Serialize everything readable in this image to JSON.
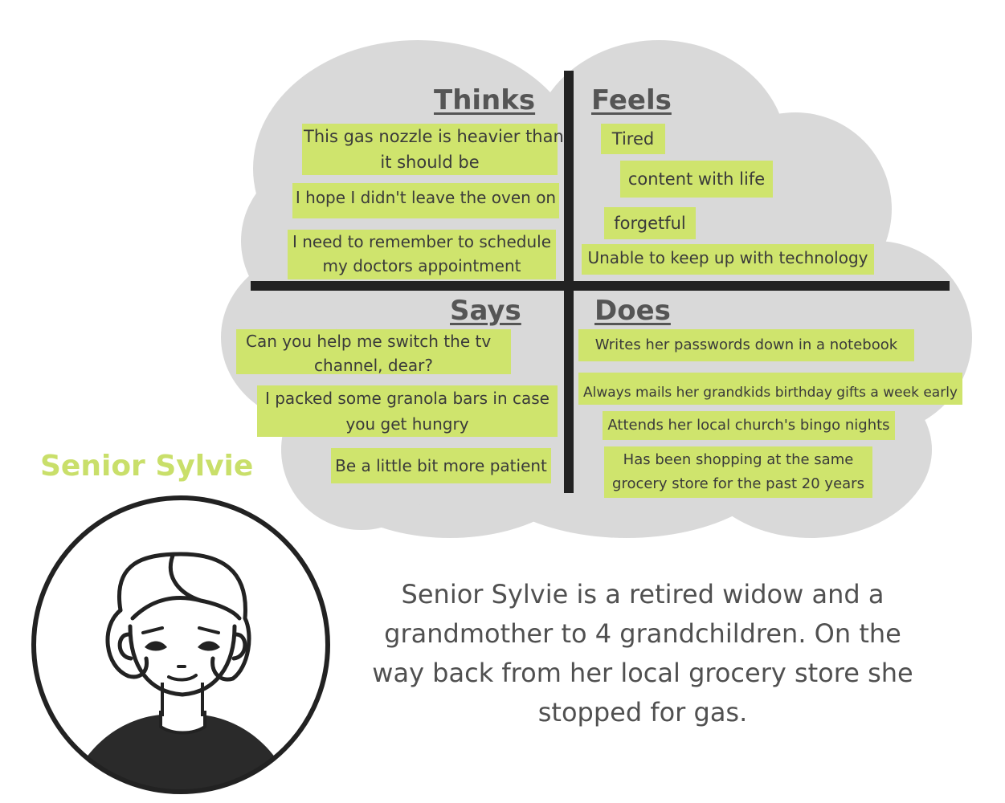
{
  "persona": {
    "name": "Senior Sylvie"
  },
  "quadrants": {
    "thinks": {
      "title": "Thinks",
      "notes": [
        [
          "This gas nozzle is heavier than",
          "it should be"
        ],
        [
          "I hope I didn't leave the oven on"
        ],
        [
          "I need to remember to schedule",
          "my doctors appointment"
        ]
      ]
    },
    "feels": {
      "title": "Feels",
      "notes": [
        [
          "Tired"
        ],
        [
          "content with life"
        ],
        [
          "forgetful"
        ],
        [
          "Unable to keep up with technology"
        ]
      ]
    },
    "says": {
      "title": "Says",
      "notes": [
        [
          "Can you help me switch the tv",
          "channel, dear?"
        ],
        [
          "I packed some granola bars in case",
          "you get hungry"
        ],
        [
          "Be a little bit more patient"
        ]
      ]
    },
    "does": {
      "title": "Does",
      "notes": [
        [
          "Writes her passwords down in a notebook"
        ],
        [
          "Always mails her grandkids birthday gifts a week early"
        ],
        [
          "Attends her local church's bingo nights"
        ],
        [
          "Has been shopping at the same",
          "grocery store for the past 20 years"
        ]
      ]
    }
  },
  "description": [
    "Senior Sylvie is a retired widow and a",
    "grandmother to 4 grandchildren. On the",
    "way back from her local grocery store she",
    "stopped for gas."
  ],
  "colors": {
    "cloud": "#d9d9d9",
    "sticky": "#cfe46d",
    "name": "#c9df6a",
    "divider": "#222222"
  }
}
